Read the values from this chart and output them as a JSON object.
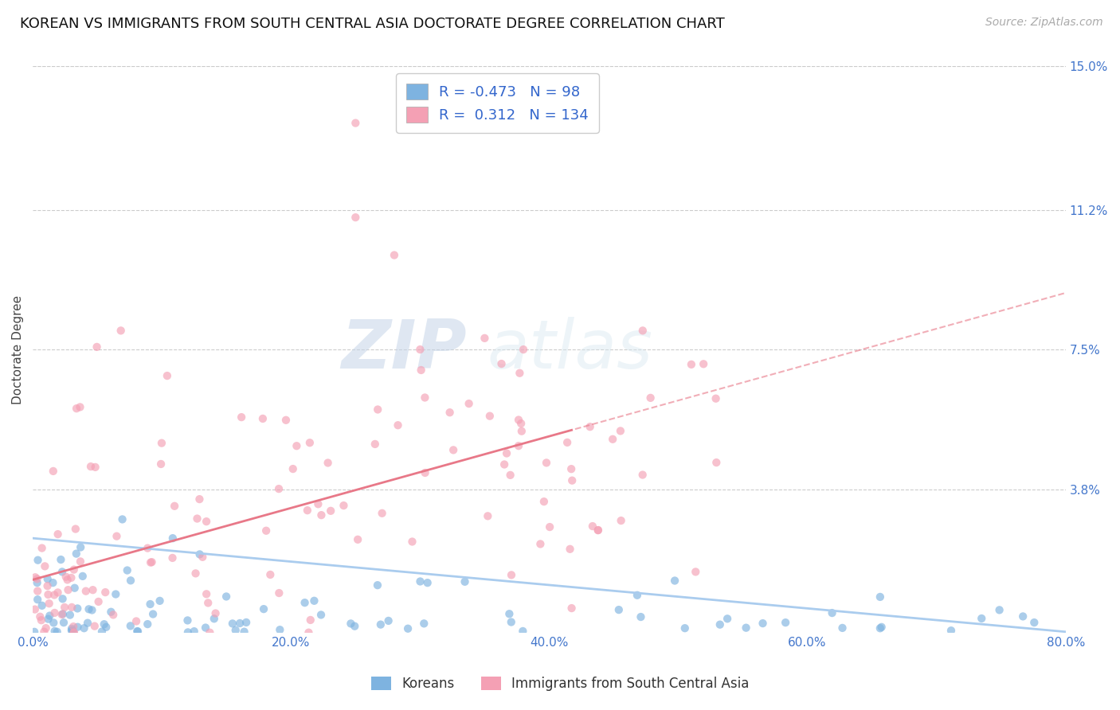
{
  "title": "KOREAN VS IMMIGRANTS FROM SOUTH CENTRAL ASIA DOCTORATE DEGREE CORRELATION CHART",
  "source": "Source: ZipAtlas.com",
  "ylabel": "Doctorate Degree",
  "xlim": [
    0.0,
    80.0
  ],
  "ylim": [
    0.0,
    15.0
  ],
  "ytick_vals": [
    3.8,
    7.5,
    11.2,
    15.0
  ],
  "ytick_labels": [
    "3.8%",
    "7.5%",
    "11.2%",
    "15.0%"
  ],
  "xtick_vals": [
    0,
    20,
    40,
    60,
    80
  ],
  "xtick_labels": [
    "0.0%",
    "20.0%",
    "40.0%",
    "60.0%",
    "80.0%"
  ],
  "korean_color": "#7eb3e0",
  "asia_color": "#f4a0b4",
  "korean_R": -0.473,
  "korean_N": 98,
  "asia_R": 0.312,
  "asia_N": 134,
  "legend_label_korean": "Koreans",
  "legend_label_asia": "Immigrants from South Central Asia",
  "watermark_zip": "ZIP",
  "watermark_atlas": "atlas",
  "background_color": "#ffffff",
  "grid_color": "#cccccc",
  "title_fontsize": 13,
  "axis_tick_color": "#4477cc",
  "scatter_alpha": 0.65,
  "scatter_size": 55,
  "korean_line_color": "#aaccee",
  "asia_line_color": "#e87888",
  "korean_line_intercept": 2.5,
  "korean_line_slope": -0.031,
  "asia_line_intercept": 1.4,
  "asia_line_slope": 0.095,
  "seed": 7
}
